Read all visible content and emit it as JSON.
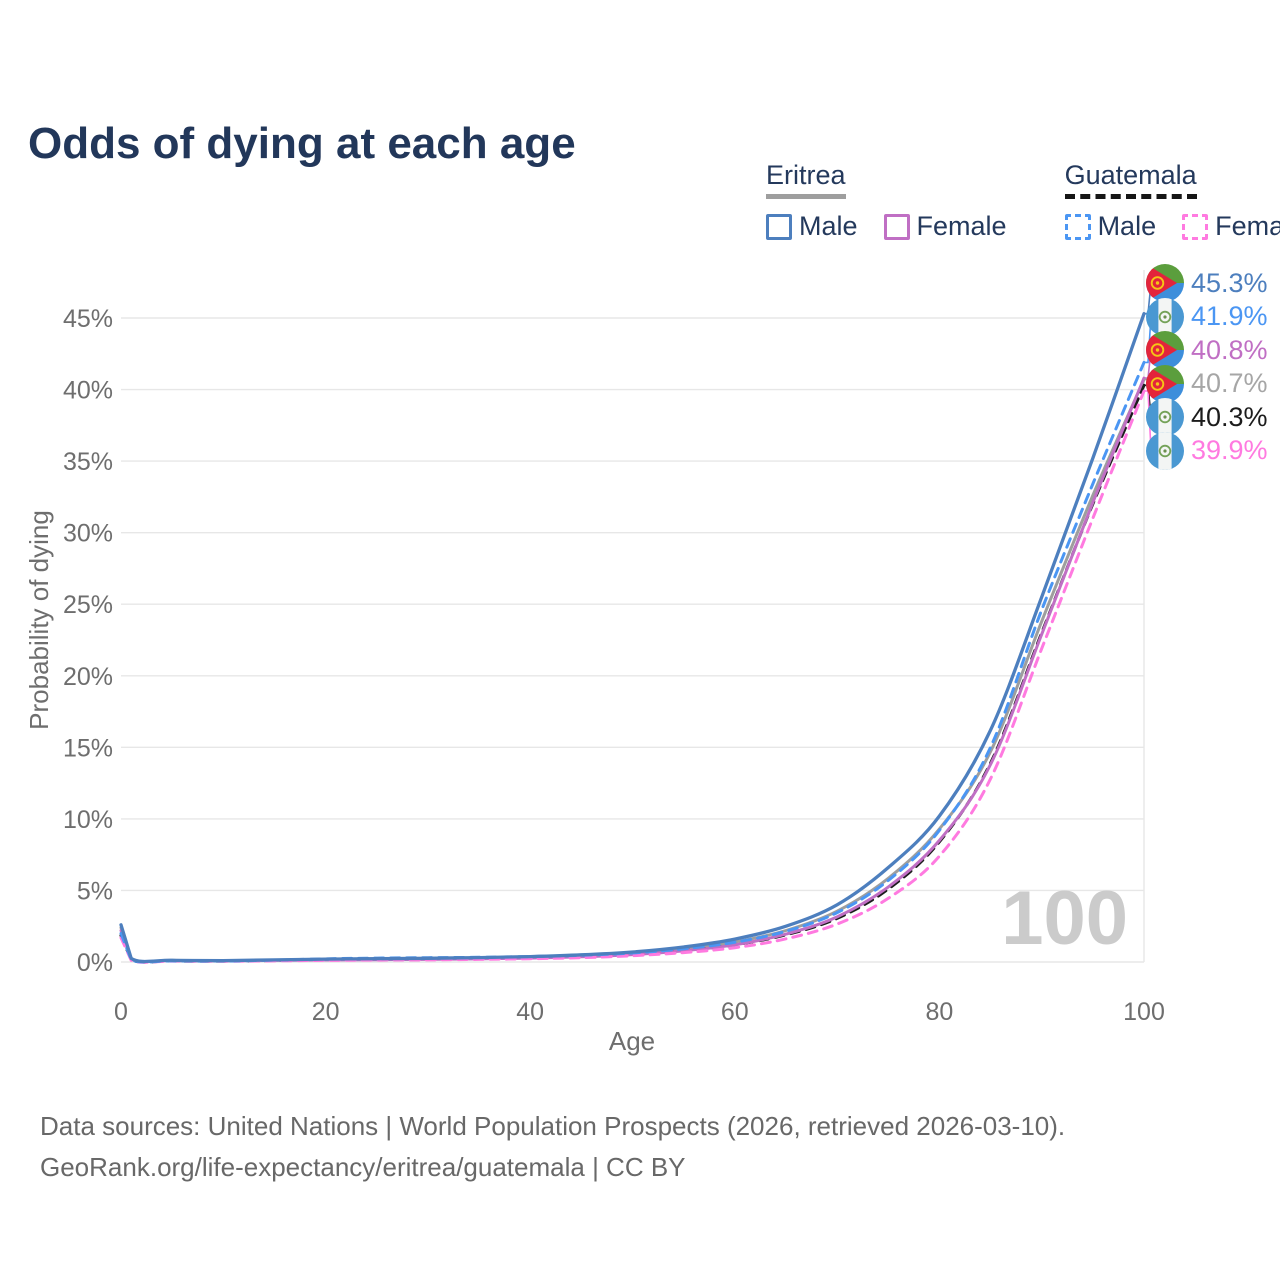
{
  "title": "Odds of dying at each age",
  "legend": {
    "groups": [
      {
        "country": "Eritrea",
        "line_style": "solid",
        "line_color": "#9e9e9e",
        "items": [
          {
            "label": "Male",
            "color": "#4d7fbe",
            "dashed": false
          },
          {
            "label": "Female",
            "color": "#c06fc4",
            "dashed": false
          }
        ]
      },
      {
        "country": "Guatemala",
        "line_style": "dashed",
        "line_color": "#161616",
        "items": [
          {
            "label": "Male",
            "color": "#4b96f3",
            "dashed": true
          },
          {
            "label": "Female",
            "color": "#ff7ae0",
            "dashed": true
          }
        ]
      }
    ]
  },
  "watermark": "100",
  "footer": {
    "line1": "Data sources: United Nations | World Population Prospects (2026, retrieved 2026-03-10).",
    "line2": "GeoRank.org/life-expectancy/eritrea/guatemala | CC BY"
  },
  "end_labels": [
    {
      "flag": "eritrea",
      "text": "45.3%",
      "color": "#4d7fbe"
    },
    {
      "flag": "guatemala",
      "text": "41.9%",
      "color": "#4b96f3"
    },
    {
      "flag": "eritrea",
      "text": "40.8%",
      "color": "#c06fc4"
    },
    {
      "flag": "eritrea",
      "text": "40.7%",
      "color": "#a6a6a6"
    },
    {
      "flag": "guatemala",
      "text": "40.3%",
      "color": "#1c1c1c"
    },
    {
      "flag": "guatemala",
      "text": "39.9%",
      "color": "#ff7ae0"
    }
  ],
  "chart_data": {
    "type": "line",
    "title": "Odds of dying at each age",
    "xlabel": "Age",
    "ylabel": "Probability of dying",
    "xlim": [
      0,
      100
    ],
    "ylim_percent": [
      0,
      47
    ],
    "x_ticks": [
      0,
      20,
      40,
      60,
      80,
      100
    ],
    "y_ticks_percent": [
      0,
      5,
      10,
      15,
      20,
      25,
      30,
      35,
      40,
      45
    ],
    "grid": "horizontal",
    "legend_position": "top-right",
    "ages": [
      0,
      1,
      5,
      10,
      15,
      20,
      25,
      30,
      35,
      40,
      45,
      50,
      55,
      60,
      65,
      70,
      75,
      80,
      85,
      90,
      95,
      100
    ],
    "series": [
      {
        "name": "Eritrea Male",
        "country": "eritrea",
        "sex": "male",
        "color": "#4d7fbe",
        "dashed": false,
        "end_label": "45.3%",
        "values_percent": [
          2.6,
          0.25,
          0.12,
          0.1,
          0.15,
          0.2,
          0.23,
          0.26,
          0.31,
          0.38,
          0.5,
          0.7,
          1.05,
          1.6,
          2.5,
          4.0,
          6.6,
          10.2,
          16.2,
          25.5,
          35.2,
          45.3
        ]
      },
      {
        "name": "Guatemala Male",
        "country": "guatemala",
        "sex": "male",
        "color": "#4b96f3",
        "dashed": true,
        "end_label": "41.9%",
        "values_percent": [
          2.0,
          0.16,
          0.08,
          0.07,
          0.13,
          0.22,
          0.27,
          0.3,
          0.33,
          0.38,
          0.47,
          0.63,
          0.92,
          1.38,
          2.15,
          3.45,
          5.7,
          9.2,
          15.0,
          24.6,
          33.4,
          41.9
        ]
      },
      {
        "name": "Eritrea Female",
        "country": "eritrea",
        "sex": "female",
        "color": "#c06fc4",
        "dashed": false,
        "end_label": "40.8%",
        "values_percent": [
          2.2,
          0.2,
          0.1,
          0.08,
          0.11,
          0.14,
          0.16,
          0.18,
          0.22,
          0.27,
          0.36,
          0.52,
          0.78,
          1.2,
          1.95,
          3.15,
          5.25,
          8.5,
          13.8,
          22.9,
          32.1,
          40.8
        ]
      },
      {
        "name": "Eritrea Both",
        "country": "eritrea",
        "sex": "both",
        "color": "#9e9e9e",
        "dashed": false,
        "end_label": "40.7%",
        "values_percent": [
          2.4,
          0.22,
          0.11,
          0.09,
          0.13,
          0.17,
          0.19,
          0.22,
          0.26,
          0.32,
          0.42,
          0.6,
          0.9,
          1.4,
          2.2,
          3.55,
          5.85,
          9.3,
          14.7,
          23.8,
          32.6,
          40.7
        ]
      },
      {
        "name": "Guatemala Both",
        "country": "guatemala",
        "sex": "both",
        "color": "#1c1c1c",
        "dashed": true,
        "end_label": "40.3%",
        "values_percent": [
          1.85,
          0.14,
          0.07,
          0.06,
          0.11,
          0.18,
          0.22,
          0.25,
          0.28,
          0.33,
          0.41,
          0.55,
          0.8,
          1.2,
          1.9,
          3.05,
          5.1,
          8.4,
          13.9,
          23.0,
          32.0,
          40.3
        ]
      },
      {
        "name": "Guatemala Female",
        "country": "guatemala",
        "sex": "female",
        "color": "#ff7ae0",
        "dashed": true,
        "end_label": "39.9%",
        "values_percent": [
          1.7,
          0.12,
          0.06,
          0.05,
          0.08,
          0.11,
          0.13,
          0.15,
          0.18,
          0.23,
          0.3,
          0.44,
          0.66,
          1.0,
          1.62,
          2.65,
          4.45,
          7.4,
          12.8,
          21.9,
          31.0,
          39.9
        ]
      }
    ],
    "colors": {
      "grid": "#e7e7e7",
      "axis_text": "#6e6e6e",
      "title_text": "#22375a",
      "watermark": "#cbcbcb"
    }
  }
}
